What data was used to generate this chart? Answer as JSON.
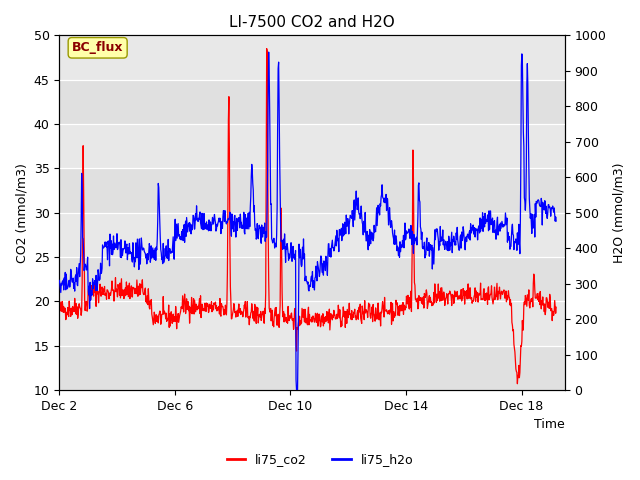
{
  "title": "LI-7500 CO2 and H2O",
  "xlabel": "Time",
  "ylabel_left": "CO2 (mmol/m3)",
  "ylabel_right": "H2O (mmol/m3)",
  "ylim_left": [
    10,
    50
  ],
  "ylim_right": [
    0,
    1000
  ],
  "yticks_left": [
    10,
    15,
    20,
    25,
    30,
    35,
    40,
    45,
    50
  ],
  "yticks_right": [
    0,
    100,
    200,
    300,
    400,
    500,
    600,
    700,
    800,
    900,
    1000
  ],
  "xtick_labels": [
    "Dec 2",
    "Dec 6",
    "Dec 10",
    "Dec 14",
    "Dec 18"
  ],
  "xtick_positions": [
    2,
    6,
    10,
    14,
    18
  ],
  "annotation_text": "BC_flux",
  "annotation_color": "#8B0000",
  "annotation_bg": "#FFFFAA",
  "legend_entries": [
    "li75_co2",
    "li75_h2o"
  ],
  "line_colors": [
    "red",
    "blue"
  ],
  "plot_bg": "#E8E8E8",
  "band_color": "#D3D3D3",
  "title_fontsize": 11,
  "axis_fontsize": 9,
  "tick_fontsize": 9
}
